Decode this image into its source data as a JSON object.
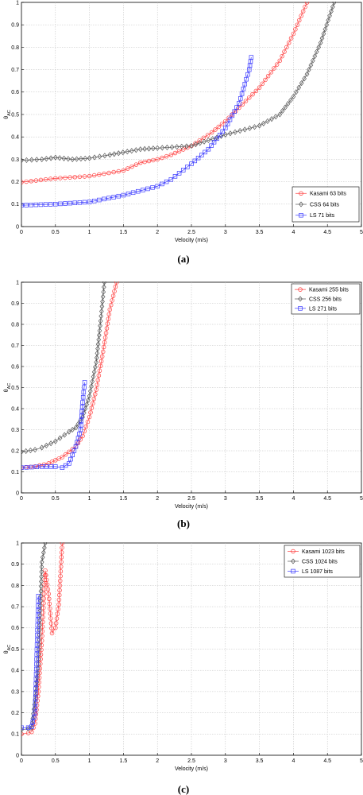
{
  "chart_data": [
    {
      "type": "line",
      "panel_label": "(a)",
      "xlabel": "Velocity (m/s)",
      "ylabel": "θ_AC",
      "xlim": [
        0,
        5
      ],
      "ylim": [
        0,
        1
      ],
      "x_ticks": [
        "0",
        "0.5",
        "1",
        "1.5",
        "2",
        "2.5",
        "3",
        "3.5",
        "4",
        "4.5",
        "5"
      ],
      "y_ticks": [
        "0",
        "0.1",
        "0.2",
        "0.3",
        "0.4",
        "0.5",
        "0.6",
        "0.7",
        "0.8",
        "0.9",
        "1"
      ],
      "grid": true,
      "legend_position": "bottom-right",
      "series": [
        {
          "name": "Kasami 63 bits",
          "color": "#ff3b3b",
          "marker": "circle",
          "points": [
            [
              0,
              0.198
            ],
            [
              0.5,
              0.215
            ],
            [
              1,
              0.225
            ],
            [
              1.5,
              0.25
            ],
            [
              1.75,
              0.285
            ],
            [
              2,
              0.3
            ],
            [
              2.2,
              0.32
            ],
            [
              2.5,
              0.36
            ],
            [
              2.8,
              0.42
            ],
            [
              3.0,
              0.47
            ],
            [
              3.2,
              0.53
            ],
            [
              3.5,
              0.62
            ],
            [
              3.8,
              0.74
            ],
            [
              4.0,
              0.86
            ],
            [
              4.2,
              1.0
            ]
          ]
        },
        {
          "name": "CSS 64 bits",
          "color": "#555555",
          "marker": "diamond",
          "points": [
            [
              0,
              0.295
            ],
            [
              0.3,
              0.3
            ],
            [
              0.5,
              0.308
            ],
            [
              0.75,
              0.3
            ],
            [
              1,
              0.305
            ],
            [
              1.3,
              0.32
            ],
            [
              1.75,
              0.345
            ],
            [
              2,
              0.35
            ],
            [
              2.5,
              0.36
            ],
            [
              3.0,
              0.41
            ],
            [
              3.5,
              0.45
            ],
            [
              3.8,
              0.5
            ],
            [
              4.0,
              0.58
            ],
            [
              4.2,
              0.68
            ],
            [
              4.4,
              0.82
            ],
            [
              4.6,
              1.0
            ]
          ]
        },
        {
          "name": "LS 71 bits",
          "color": "#3a3aff",
          "marker": "square",
          "points": [
            [
              0,
              0.095
            ],
            [
              0.5,
              0.1
            ],
            [
              1,
              0.11
            ],
            [
              1.5,
              0.14
            ],
            [
              2.0,
              0.18
            ],
            [
              2.2,
              0.21
            ],
            [
              2.5,
              0.28
            ],
            [
              2.75,
              0.345
            ],
            [
              3.0,
              0.44
            ],
            [
              3.2,
              0.55
            ],
            [
              3.35,
              0.7
            ],
            [
              3.38,
              0.755
            ]
          ]
        }
      ]
    },
    {
      "type": "line",
      "panel_label": "(b)",
      "xlabel": "Velocity (m/s)",
      "ylabel": "θ_AC",
      "xlim": [
        0,
        5
      ],
      "ylim": [
        0,
        1
      ],
      "x_ticks": [
        "0",
        "0.5",
        "1",
        "1.5",
        "2",
        "2.5",
        "3",
        "3.5",
        "4",
        "4.5",
        "5"
      ],
      "y_ticks": [
        "0",
        "0.1",
        "0.2",
        "0.3",
        "0.4",
        "0.5",
        "0.6",
        "0.7",
        "0.8",
        "0.9",
        "1"
      ],
      "grid": true,
      "legend_position": "top-right",
      "series": [
        {
          "name": "Kasami 255 bits",
          "color": "#ff3b3b",
          "marker": "circle",
          "points": [
            [
              0,
              0.12
            ],
            [
              0.2,
              0.125
            ],
            [
              0.4,
              0.14
            ],
            [
              0.5,
              0.155
            ],
            [
              0.6,
              0.17
            ],
            [
              0.8,
              0.22
            ],
            [
              0.9,
              0.27
            ],
            [
              1.0,
              0.36
            ],
            [
              1.1,
              0.49
            ],
            [
              1.2,
              0.67
            ],
            [
              1.3,
              0.87
            ],
            [
              1.4,
              1.0
            ]
          ]
        },
        {
          "name": "CSS 256 bits",
          "color": "#555555",
          "marker": "diamond",
          "points": [
            [
              0,
              0.195
            ],
            [
              0.2,
              0.205
            ],
            [
              0.3,
              0.215
            ],
            [
              0.5,
              0.245
            ],
            [
              0.7,
              0.29
            ],
            [
              0.8,
              0.31
            ],
            [
              0.9,
              0.36
            ],
            [
              1.0,
              0.46
            ],
            [
              1.1,
              0.62
            ],
            [
              1.15,
              0.77
            ],
            [
              1.22,
              1.0
            ]
          ]
        },
        {
          "name": "LS 271 bits",
          "color": "#3a3aff",
          "marker": "square",
          "points": [
            [
              0,
              0.12
            ],
            [
              0.3,
              0.125
            ],
            [
              0.5,
              0.125
            ],
            [
              0.6,
              0.12
            ],
            [
              0.7,
              0.14
            ],
            [
              0.8,
              0.22
            ],
            [
              0.87,
              0.3
            ],
            [
              0.9,
              0.43
            ],
            [
              0.93,
              0.525
            ]
          ]
        }
      ]
    },
    {
      "type": "line",
      "panel_label": "(c)",
      "xlabel": "Velocity (m/s)",
      "ylabel": "θ_AC",
      "xlim": [
        0,
        5
      ],
      "ylim": [
        0,
        1
      ],
      "x_ticks": [
        "0",
        "0.5",
        "1",
        "1.5",
        "2",
        "2.5",
        "3",
        "3.5",
        "4",
        "4.5",
        "5"
      ],
      "y_ticks": [
        "0",
        "0.1",
        "0.2",
        "0.3",
        "0.4",
        "0.5",
        "0.6",
        "0.7",
        "0.8",
        "0.9",
        "1"
      ],
      "grid": true,
      "legend_position": "top-right",
      "series": [
        {
          "name": "Kasami 1023 bits",
          "color": "#ff3b3b",
          "marker": "circle",
          "points": [
            [
              0,
              0.1
            ],
            [
              0.1,
              0.105
            ],
            [
              0.15,
              0.11
            ],
            [
              0.2,
              0.15
            ],
            [
              0.25,
              0.3
            ],
            [
              0.3,
              0.54
            ],
            [
              0.35,
              0.87
            ],
            [
              0.4,
              0.76
            ],
            [
              0.45,
              0.575
            ],
            [
              0.5,
              0.6
            ],
            [
              0.55,
              0.71
            ],
            [
              0.6,
              1.0
            ]
          ]
        },
        {
          "name": "CSS 1024 bits",
          "color": "#555555",
          "marker": "diamond",
          "points": [
            [
              0,
              0.12
            ],
            [
              0.1,
              0.125
            ],
            [
              0.15,
              0.13
            ],
            [
              0.2,
              0.26
            ],
            [
              0.25,
              0.43
            ],
            [
              0.3,
              0.91
            ],
            [
              0.35,
              1.0
            ]
          ]
        },
        {
          "name": "LS 1087 bits",
          "color": "#3a3aff",
          "marker": "square",
          "points": [
            [
              0,
              0.13
            ],
            [
              0.1,
              0.13
            ],
            [
              0.15,
              0.135
            ],
            [
              0.2,
              0.2
            ],
            [
              0.25,
              0.75
            ]
          ]
        }
      ]
    }
  ]
}
